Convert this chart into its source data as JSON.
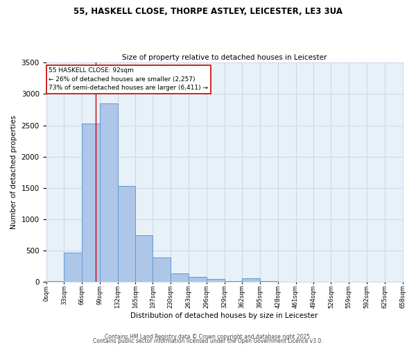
{
  "title1": "55, HASKELL CLOSE, THORPE ASTLEY, LEICESTER, LE3 3UA",
  "title2": "Size of property relative to detached houses in Leicester",
  "xlabel": "Distribution of detached houses by size in Leicester",
  "ylabel": "Number of detached properties",
  "bar_edges": [
    0,
    33,
    66,
    99,
    132,
    165,
    197,
    230,
    263,
    296,
    329,
    362,
    395,
    428,
    461,
    494,
    526,
    559,
    592,
    625,
    658
  ],
  "bar_heights": [
    15,
    470,
    2530,
    2850,
    1530,
    750,
    390,
    140,
    80,
    45,
    10,
    60,
    10,
    5,
    5,
    5,
    5,
    5,
    5,
    5
  ],
  "bar_color": "#aec6e8",
  "bar_edgecolor": "#5b9bd5",
  "grid_color": "#c8d8e8",
  "bg_color": "#e8f0f8",
  "vline_x": 92,
  "vline_color": "#cc0000",
  "annotation_line1": "55 HASKELL CLOSE: 92sqm",
  "annotation_line2": "← 26% of detached houses are smaller (2,257)",
  "annotation_line3": "73% of semi-detached houses are larger (6,411) →",
  "tick_labels": [
    "0sqm",
    "33sqm",
    "66sqm",
    "99sqm",
    "132sqm",
    "165sqm",
    "197sqm",
    "230sqm",
    "263sqm",
    "296sqm",
    "329sqm",
    "362sqm",
    "395sqm",
    "428sqm",
    "461sqm",
    "494sqm",
    "526sqm",
    "559sqm",
    "592sqm",
    "625sqm",
    "658sqm"
  ],
  "ylim": [
    0,
    3500
  ],
  "yticks": [
    0,
    500,
    1000,
    1500,
    2000,
    2500,
    3000,
    3500
  ],
  "footer1": "Contains HM Land Registry data © Crown copyright and database right 2025.",
  "footer2": "Contains public sector information licensed under the Open Government Licence v3.0."
}
